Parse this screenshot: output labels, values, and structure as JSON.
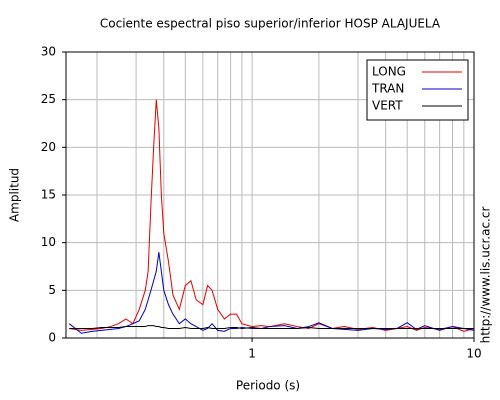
{
  "chart_data": {
    "type": "line",
    "title": "Cociente espectral piso superior/inferior  HOSP ALAJUELA",
    "xlabel": "Periodo (s)",
    "ylabel": "Amplitud",
    "source": "http://www.lis.ucr.ac.cr",
    "xscale": "log",
    "grid": true,
    "legend": "upper right",
    "xlim": [
      0.145,
      10
    ],
    "ylim": [
      0,
      30
    ],
    "xticks": [
      1,
      10
    ],
    "yticks": [
      0,
      5,
      10,
      15,
      20,
      25,
      30
    ],
    "xminor": [
      0.2,
      0.3,
      0.4,
      0.5,
      0.6,
      0.7,
      0.8,
      0.9,
      2,
      3,
      4,
      5,
      6,
      7,
      8,
      9
    ],
    "x": [
      0.15,
      0.17,
      0.19,
      0.21,
      0.23,
      0.25,
      0.27,
      0.29,
      0.31,
      0.33,
      0.34,
      0.35,
      0.36,
      0.37,
      0.38,
      0.39,
      0.4,
      0.42,
      0.44,
      0.47,
      0.5,
      0.53,
      0.56,
      0.6,
      0.63,
      0.66,
      0.7,
      0.75,
      0.8,
      0.85,
      0.9,
      1.0,
      1.1,
      1.2,
      1.4,
      1.6,
      1.8,
      2.0,
      2.3,
      2.6,
      3,
      3.5,
      4,
      4.5,
      5,
      5.5,
      6,
      7,
      8,
      9,
      10
    ],
    "series": [
      {
        "name": "LONG",
        "color": "#e00000",
        "values": [
          1.0,
          0.8,
          0.9,
          1.0,
          1.2,
          1.5,
          2.0,
          1.5,
          3.0,
          5.0,
          7,
          14,
          20,
          25,
          22,
          15,
          11,
          8,
          4.5,
          3,
          5.5,
          6,
          4,
          3.5,
          5.5,
          5,
          3,
          2,
          2.5,
          2.5,
          1.5,
          1.2,
          1.3,
          1.2,
          1.5,
          1.2,
          1.0,
          1.5,
          1.0,
          1.2,
          0.9,
          1.1,
          0.8,
          1.0,
          1.2,
          0.8,
          1.1,
          0.9,
          1.2,
          0.7,
          1.0
        ]
      },
      {
        "name": "TRAN",
        "color": "#0000c0",
        "values": [
          1.5,
          0.5,
          0.7,
          0.8,
          0.9,
          1.0,
          1.2,
          1.5,
          1.8,
          3,
          4,
          5,
          6,
          7,
          9,
          7,
          5,
          3.5,
          2.5,
          1.5,
          2,
          1.5,
          1.2,
          0.8,
          1.0,
          1.5,
          0.8,
          0.7,
          1.0,
          1.0,
          1.1,
          1.0,
          1.0,
          1.2,
          1.3,
          1.0,
          1.2,
          1.6,
          1.0,
          0.9,
          0.8,
          1.0,
          0.9,
          1.0,
          1.6,
          0.9,
          1.3,
          0.8,
          1.2,
          1.0,
          0.8
        ]
      },
      {
        "name": "VERT",
        "color": "#000000",
        "values": [
          1.0,
          1.0,
          1.0,
          1.1,
          1.1,
          1.1,
          1.2,
          1.2,
          1.2,
          1.2,
          1.3,
          1.3,
          1.3,
          1.2,
          1.2,
          1.1,
          1.1,
          1.0,
          1.0,
          1.0,
          1.1,
          1.0,
          1.0,
          1.0,
          1.1,
          1.0,
          1.0,
          1.0,
          1.1,
          1.1,
          1.0,
          1.1,
          1.0,
          1.0,
          1.0,
          1.0,
          1.1,
          1.0,
          1.0,
          1.0,
          1.0,
          1.0,
          1.0,
          1.0,
          1.0,
          1.0,
          1.0,
          1.0,
          1.0,
          1.0,
          1.0
        ]
      }
    ]
  }
}
